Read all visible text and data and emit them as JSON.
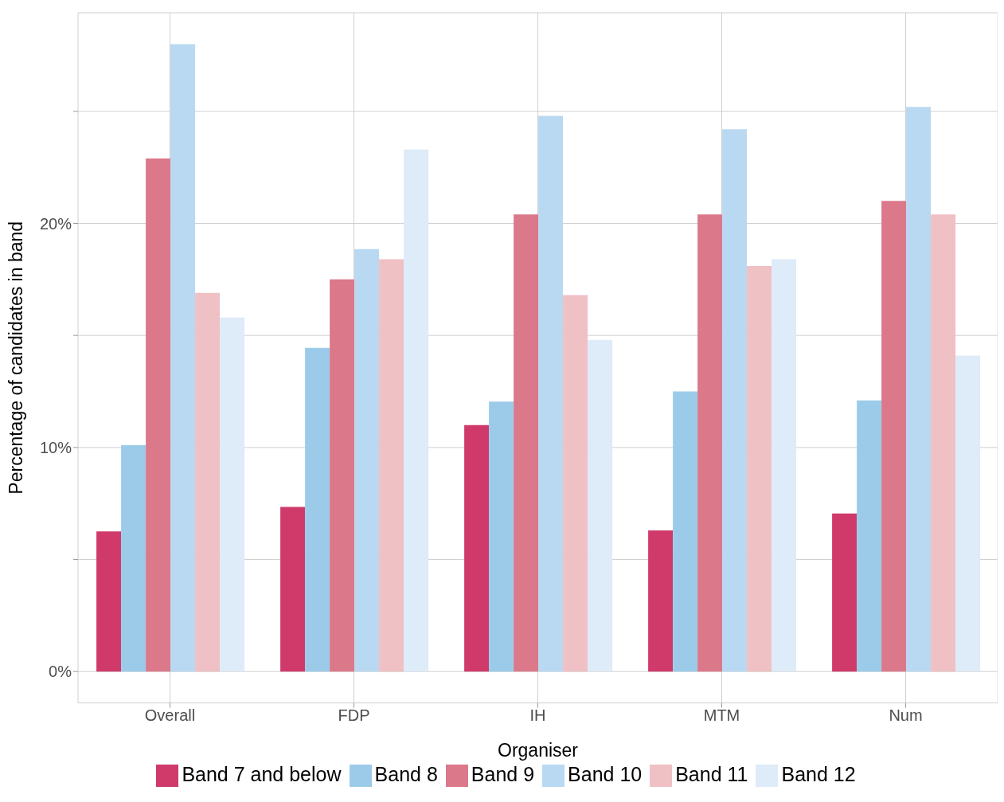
{
  "chart_data": {
    "type": "bar",
    "xlabel": "Organiser",
    "ylabel": "Percentage of candidates in band",
    "categories": [
      "Overall",
      "FDP",
      "IH",
      "MTM",
      "Num"
    ],
    "series": [
      {
        "name": "Band 7 and below",
        "color": "#cf3a6b",
        "values": [
          6.25,
          7.35,
          11.0,
          6.3,
          7.05
        ]
      },
      {
        "name": "Band 8",
        "color": "#9ccbe9",
        "values": [
          10.1,
          14.45,
          12.05,
          12.5,
          12.1
        ]
      },
      {
        "name": "Band 9",
        "color": "#db788a",
        "values": [
          22.9,
          17.5,
          20.4,
          20.4,
          21.0
        ]
      },
      {
        "name": "Band 10",
        "color": "#b9d9f2",
        "values": [
          28.0,
          18.85,
          24.8,
          24.2,
          25.2
        ]
      },
      {
        "name": "Band 11",
        "color": "#efc0c4",
        "values": [
          16.9,
          18.4,
          16.8,
          18.1,
          20.4
        ]
      },
      {
        "name": "Band 12",
        "color": "#deebf8",
        "values": [
          15.8,
          23.3,
          14.8,
          18.4,
          14.1
        ]
      }
    ],
    "ylim": [
      -1.4,
      29.4
    ],
    "yticks": [
      {
        "value": 0,
        "label": "0%"
      },
      {
        "value": 5,
        "label": null
      },
      {
        "value": 10,
        "label": "10%"
      },
      {
        "value": 15,
        "label": null
      },
      {
        "value": 20,
        "label": "20%"
      },
      {
        "value": 25,
        "label": null
      }
    ],
    "grid": true,
    "legend": "bottom"
  }
}
